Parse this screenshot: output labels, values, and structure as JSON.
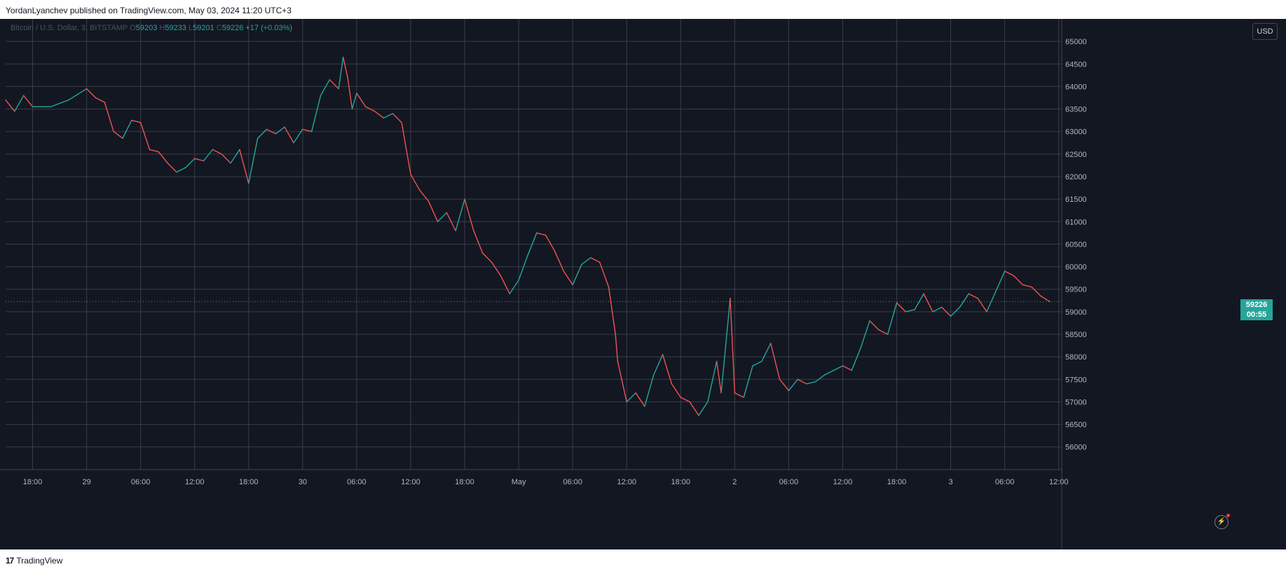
{
  "header": {
    "published_by": "YordanLyanchev published on TradingView.com, May 03, 2024 11:20 UTC+3"
  },
  "legend": {
    "symbol": "Bitcoin / U.S. Dollar, 3, BITSTAMP",
    "o_label": "O",
    "open": "59203",
    "h_label": "H",
    "high": "59233",
    "l_label": "L",
    "low": "59201",
    "c_label": "C",
    "close": "59226",
    "change": "+17 (+0.03%)"
  },
  "currency_button": "USD",
  "last_price": {
    "price": "59226",
    "countdown": "00:55"
  },
  "colors": {
    "background": "#131722",
    "up": "#26a69a",
    "down": "#ef5350",
    "grid": "#3a3e4a"
  },
  "icons": {
    "alert": "lightning-icon"
  },
  "footer": {
    "brand": "TradingView",
    "logo_glyph": "17"
  },
  "chart_data": {
    "type": "line",
    "title": "Bitcoin / U.S. Dollar, 3, BITSTAMP",
    "interval": "3m",
    "currency": "USD",
    "y_ticks": [
      56000,
      56500,
      57000,
      57500,
      58000,
      58500,
      59000,
      59500,
      60000,
      60500,
      61000,
      61500,
      62000,
      62500,
      63000,
      63500,
      64000,
      64500,
      65000
    ],
    "ylim": [
      55700,
      65500
    ],
    "xlim": [
      "2024-04-28T15:00",
      "2024-05-03T12:20"
    ],
    "x_ticks": [
      {
        "time": "2024-04-28T18:00",
        "label": "18:00"
      },
      {
        "time": "2024-04-29T00:00",
        "label": "29"
      },
      {
        "time": "2024-04-29T06:00",
        "label": "06:00"
      },
      {
        "time": "2024-04-29T12:00",
        "label": "12:00"
      },
      {
        "time": "2024-04-29T18:00",
        "label": "18:00"
      },
      {
        "time": "2024-04-30T00:00",
        "label": "30"
      },
      {
        "time": "2024-04-30T06:00",
        "label": "06:00"
      },
      {
        "time": "2024-04-30T12:00",
        "label": "12:00"
      },
      {
        "time": "2024-04-30T18:00",
        "label": "18:00"
      },
      {
        "time": "2024-05-01T00:00",
        "label": "May"
      },
      {
        "time": "2024-05-01T06:00",
        "label": "06:00"
      },
      {
        "time": "2024-05-01T12:00",
        "label": "12:00"
      },
      {
        "time": "2024-05-01T18:00",
        "label": "18:00"
      },
      {
        "time": "2024-05-02T00:00",
        "label": "2"
      },
      {
        "time": "2024-05-02T06:00",
        "label": "06:00"
      },
      {
        "time": "2024-05-02T12:00",
        "label": "12:00"
      },
      {
        "time": "2024-05-02T18:00",
        "label": "18:00"
      },
      {
        "time": "2024-05-03T00:00",
        "label": "3"
      },
      {
        "time": "2024-05-03T06:00",
        "label": "06:00"
      },
      {
        "time": "2024-05-03T12:00",
        "label": "12:00"
      }
    ],
    "series": [
      {
        "values": [
          [
            "2024-04-28T15:00",
            63700
          ],
          [
            "2024-04-28T16:00",
            63450
          ],
          [
            "2024-04-28T17:00",
            63800
          ],
          [
            "2024-04-28T18:00",
            63550
          ],
          [
            "2024-04-28T20:00",
            63550
          ],
          [
            "2024-04-28T22:00",
            63700
          ],
          [
            "2024-04-29T00:00",
            63950
          ],
          [
            "2024-04-29T01:00",
            63750
          ],
          [
            "2024-04-29T02:00",
            63650
          ],
          [
            "2024-04-29T03:00",
            63000
          ],
          [
            "2024-04-29T04:00",
            62850
          ],
          [
            "2024-04-29T05:00",
            63250
          ],
          [
            "2024-04-29T06:00",
            63200
          ],
          [
            "2024-04-29T07:00",
            62600
          ],
          [
            "2024-04-29T08:00",
            62550
          ],
          [
            "2024-04-29T09:00",
            62300
          ],
          [
            "2024-04-29T10:00",
            62100
          ],
          [
            "2024-04-29T11:00",
            62200
          ],
          [
            "2024-04-29T12:00",
            62400
          ],
          [
            "2024-04-29T13:00",
            62350
          ],
          [
            "2024-04-29T14:00",
            62600
          ],
          [
            "2024-04-29T15:00",
            62500
          ],
          [
            "2024-04-29T16:00",
            62300
          ],
          [
            "2024-04-29T17:00",
            62600
          ],
          [
            "2024-04-29T18:00",
            61850
          ],
          [
            "2024-04-29T19:00",
            62850
          ],
          [
            "2024-04-29T20:00",
            63050
          ],
          [
            "2024-04-29T21:00",
            62950
          ],
          [
            "2024-04-29T22:00",
            63100
          ],
          [
            "2024-04-29T23:00",
            62750
          ],
          [
            "2024-04-30T00:00",
            63050
          ],
          [
            "2024-04-30T01:00",
            63000
          ],
          [
            "2024-04-30T02:00",
            63800
          ],
          [
            "2024-04-30T03:00",
            64150
          ],
          [
            "2024-04-30T04:00",
            63950
          ],
          [
            "2024-04-30T04:30",
            64650
          ],
          [
            "2024-04-30T05:00",
            64200
          ],
          [
            "2024-04-30T05:30",
            63500
          ],
          [
            "2024-04-30T06:00",
            63850
          ],
          [
            "2024-04-30T07:00",
            63550
          ],
          [
            "2024-04-30T08:00",
            63450
          ],
          [
            "2024-04-30T09:00",
            63300
          ],
          [
            "2024-04-30T10:00",
            63400
          ],
          [
            "2024-04-30T11:00",
            63200
          ],
          [
            "2024-04-30T12:00",
            62050
          ],
          [
            "2024-04-30T13:00",
            61700
          ],
          [
            "2024-04-30T14:00",
            61450
          ],
          [
            "2024-04-30T15:00",
            61000
          ],
          [
            "2024-04-30T16:00",
            61200
          ],
          [
            "2024-04-30T17:00",
            60800
          ],
          [
            "2024-04-30T18:00",
            61500
          ],
          [
            "2024-04-30T19:00",
            60800
          ],
          [
            "2024-04-30T20:00",
            60300
          ],
          [
            "2024-04-30T21:00",
            60100
          ],
          [
            "2024-04-30T22:00",
            59800
          ],
          [
            "2024-04-30T23:00",
            59400
          ],
          [
            "2024-05-01T00:00",
            59700
          ],
          [
            "2024-05-01T01:00",
            60250
          ],
          [
            "2024-05-01T02:00",
            60750
          ],
          [
            "2024-05-01T03:00",
            60700
          ],
          [
            "2024-05-01T04:00",
            60350
          ],
          [
            "2024-05-01T05:00",
            59900
          ],
          [
            "2024-05-01T06:00",
            59600
          ],
          [
            "2024-05-01T07:00",
            60050
          ],
          [
            "2024-05-01T08:00",
            60200
          ],
          [
            "2024-05-01T09:00",
            60100
          ],
          [
            "2024-05-01T10:00",
            59550
          ],
          [
            "2024-05-01T10:45",
            58500
          ],
          [
            "2024-05-01T11:00",
            57900
          ],
          [
            "2024-05-01T12:00",
            57000
          ],
          [
            "2024-05-01T13:00",
            57200
          ],
          [
            "2024-05-01T14:00",
            56900
          ],
          [
            "2024-05-01T15:00",
            57600
          ],
          [
            "2024-05-01T16:00",
            58050
          ],
          [
            "2024-05-01T17:00",
            57400
          ],
          [
            "2024-05-01T18:00",
            57100
          ],
          [
            "2024-05-01T19:00",
            57000
          ],
          [
            "2024-05-01T20:00",
            56700
          ],
          [
            "2024-05-01T21:00",
            57000
          ],
          [
            "2024-05-01T22:00",
            57900
          ],
          [
            "2024-05-01T22:30",
            57200
          ],
          [
            "2024-05-01T23:30",
            59300
          ],
          [
            "2024-05-02T00:00",
            57200
          ],
          [
            "2024-05-02T01:00",
            57100
          ],
          [
            "2024-05-02T02:00",
            57800
          ],
          [
            "2024-05-02T03:00",
            57900
          ],
          [
            "2024-05-02T04:00",
            58300
          ],
          [
            "2024-05-02T05:00",
            57500
          ],
          [
            "2024-05-02T06:00",
            57250
          ],
          [
            "2024-05-02T07:00",
            57500
          ],
          [
            "2024-05-02T08:00",
            57400
          ],
          [
            "2024-05-02T09:00",
            57450
          ],
          [
            "2024-05-02T10:00",
            57600
          ],
          [
            "2024-05-02T11:00",
            57700
          ],
          [
            "2024-05-02T12:00",
            57800
          ],
          [
            "2024-05-02T13:00",
            57700
          ],
          [
            "2024-05-02T14:00",
            58200
          ],
          [
            "2024-05-02T15:00",
            58800
          ],
          [
            "2024-05-02T16:00",
            58600
          ],
          [
            "2024-05-02T17:00",
            58500
          ],
          [
            "2024-05-02T18:00",
            59200
          ],
          [
            "2024-05-02T19:00",
            59000
          ],
          [
            "2024-05-02T20:00",
            59050
          ],
          [
            "2024-05-02T21:00",
            59400
          ],
          [
            "2024-05-02T22:00",
            59000
          ],
          [
            "2024-05-02T23:00",
            59100
          ],
          [
            "2024-05-03T00:00",
            58900
          ],
          [
            "2024-05-03T01:00",
            59100
          ],
          [
            "2024-05-03T02:00",
            59400
          ],
          [
            "2024-05-03T03:00",
            59300
          ],
          [
            "2024-05-03T04:00",
            59000
          ],
          [
            "2024-05-03T05:00",
            59450
          ],
          [
            "2024-05-03T06:00",
            59900
          ],
          [
            "2024-05-03T07:00",
            59800
          ],
          [
            "2024-05-03T08:00",
            59600
          ],
          [
            "2024-05-03T09:00",
            59550
          ],
          [
            "2024-05-03T10:00",
            59350
          ],
          [
            "2024-05-03T11:00",
            59226
          ]
        ]
      }
    ]
  }
}
